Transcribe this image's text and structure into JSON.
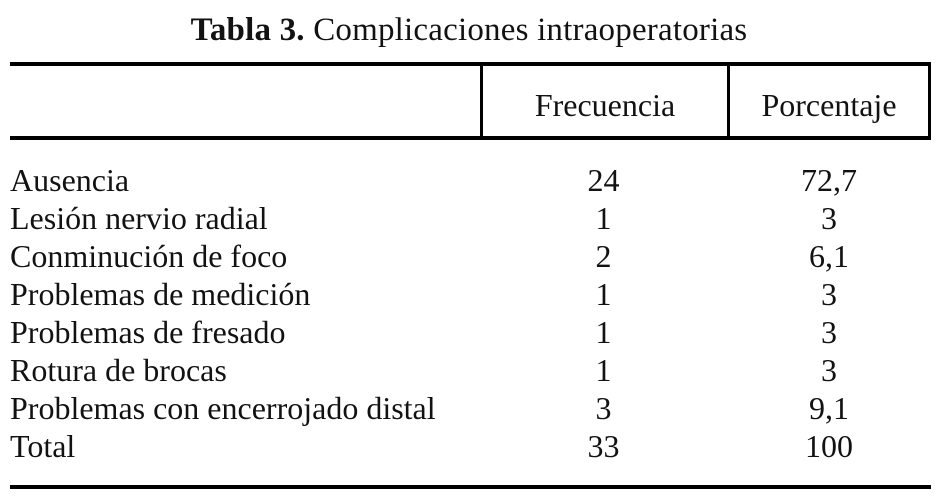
{
  "page": {
    "background_color": "#ffffff",
    "text_color": "#121212",
    "rule_color": "#000000"
  },
  "caption": {
    "prefix": "Tabla 3.",
    "text": " Complicaciones intraoperatorias"
  },
  "table": {
    "header": {
      "col1": "",
      "col2": "Frecuencia",
      "col3": "Porcentaje"
    },
    "rows": [
      {
        "label": "Ausencia",
        "frecuencia": "24",
        "porcentaje": "72,7"
      },
      {
        "label": "Lesión nervio radial",
        "frecuencia": "1",
        "porcentaje": "3"
      },
      {
        "label": "Conminución de foco",
        "frecuencia": "2",
        "porcentaje": "6,1"
      },
      {
        "label": "Problemas de medición",
        "frecuencia": "1",
        "porcentaje": "3"
      },
      {
        "label": "Problemas de fresado",
        "frecuencia": "1",
        "porcentaje": "3"
      },
      {
        "label": "Rotura de brocas",
        "frecuencia": "1",
        "porcentaje": "3"
      },
      {
        "label": "Problemas con encerrojado distal",
        "frecuencia": "3",
        "porcentaje": "9,1"
      },
      {
        "label": "Total",
        "frecuencia": "33",
        "porcentaje": "100"
      }
    ]
  }
}
